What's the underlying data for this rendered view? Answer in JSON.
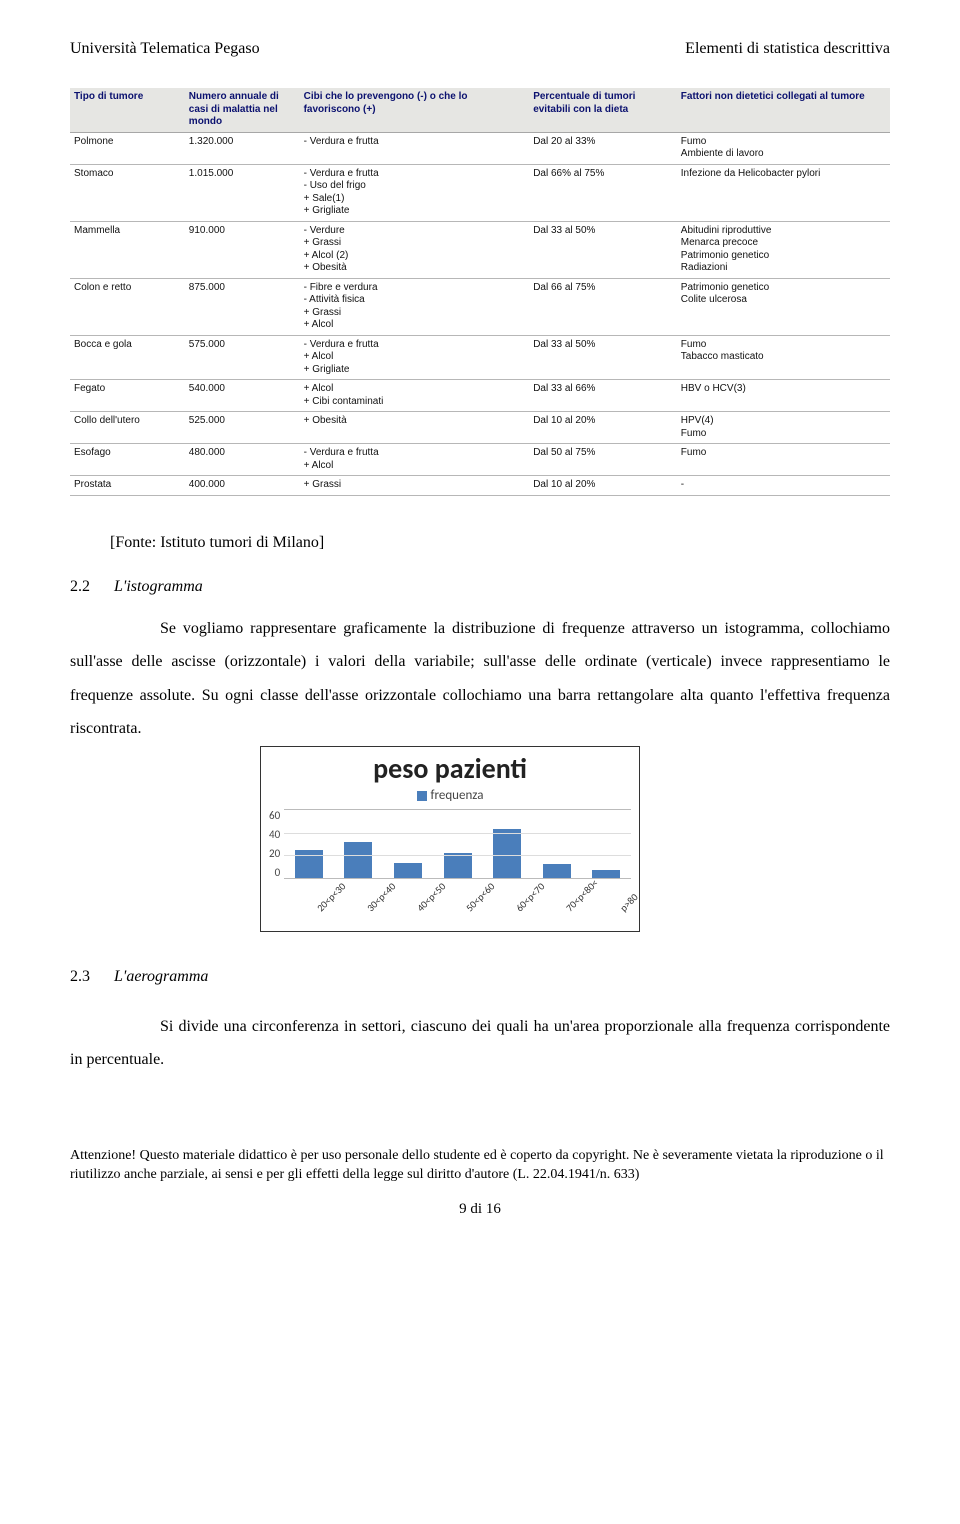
{
  "header": {
    "left": "Università Telematica Pegaso",
    "right": "Elementi di statistica descrittiva"
  },
  "tumor_table": {
    "columns": [
      "Tipo di tumore",
      "Numero annuale di casi di malattia nel mondo",
      "Cibi che lo prevengono (-) o che lo favoriscono (+)",
      "Percentuale di tumori evitabili con la dieta",
      "Fattori non dietetici collegati al tumore"
    ],
    "rows": [
      [
        "Polmone",
        "1.320.000",
        "- Verdura e frutta",
        "Dal 20 al 33%",
        "Fumo\nAmbiente di lavoro"
      ],
      [
        "Stomaco",
        "1.015.000",
        "- Verdura e frutta\n- Uso del frigo\n+ Sale(1)\n+ Grigliate",
        "Dal 66% al 75%",
        "Infezione da Helicobacter pylori"
      ],
      [
        "Mammella",
        "910.000",
        "- Verdure\n+ Grassi\n+ Alcol (2)\n+ Obesità",
        "Dal 33 al 50%",
        "Abitudini riproduttive\nMenarca precoce\nPatrimonio genetico\nRadiazioni"
      ],
      [
        "Colon e retto",
        "875.000",
        "- Fibre e verdura\n- Attività fisica\n+ Grassi\n+ Alcol",
        "Dal 66 al 75%",
        "Patrimonio genetico\nColite ulcerosa"
      ],
      [
        "Bocca e gola",
        "575.000",
        "- Verdura e frutta\n+ Alcol\n+ Grigliate",
        "Dal 33 al 50%",
        "Fumo\nTabacco masticato"
      ],
      [
        "Fegato",
        "540.000",
        "+ Alcol\n+ Cibi contaminati",
        "Dal 33 al 66%",
        "HBV o HCV(3)"
      ],
      [
        "Collo dell'utero",
        "525.000",
        "+ Obesità",
        "Dal 10 al 20%",
        "HPV(4)\nFumo"
      ],
      [
        "Esofago",
        "480.000",
        "- Verdura e frutta\n+ Alcol",
        "Dal 50 al 75%",
        "Fumo"
      ],
      [
        "Prostata",
        "400.000",
        "+ Grassi",
        "Dal 10 al 20%",
        "-"
      ]
    ]
  },
  "source_line": "[Fonte: Istituto tumori di Milano]",
  "section1": {
    "num": "2.2",
    "title": "L'istogramma",
    "body": "Se vogliamo rappresentare graficamente la distribuzione di frequenze attraverso un istogramma, collochiamo sull'asse delle ascisse (orizzontale) i valori della variabile; sull'asse delle ordinate (verticale) invece rappresentiamo le frequenze assolute. Su ogni classe dell'asse orizzontale collochiamo una barra rettangolare alta quanto l'effettiva frequenza riscontrata."
  },
  "chart": {
    "type": "bar",
    "title": "peso pazienti",
    "legend_label": "frequenza",
    "categories": [
      "20<p<30",
      "30<p<40",
      "40<p<50",
      "50<p<60",
      "60<p<70",
      "70<p<80<",
      "p>80"
    ],
    "values": [
      25,
      32,
      13,
      22,
      43,
      12,
      7
    ],
    "y_ticks": [
      60,
      40,
      20,
      0
    ],
    "ylim_max": 60,
    "bar_color": "#4a7ebb",
    "grid_color": "#dddddd",
    "background_color": "#ffffff",
    "title_fontsize": 28,
    "label_fontsize": 11
  },
  "section2": {
    "num": "2.3",
    "title": "L'aerogramma",
    "body": "Si divide una circonferenza in settori, ciascuno dei quali ha un'area proporzionale alla frequenza corrispondente in percentuale."
  },
  "footer": {
    "text": "Attenzione! Questo materiale didattico è per uso personale dello studente ed è coperto da copyright. Ne è severamente vietata la riproduzione o il riutilizzo anche parziale, ai sensi e per gli effetti della legge sul diritto d'autore (L. 22.04.1941/n. 633)",
    "page": "9 di 16"
  }
}
